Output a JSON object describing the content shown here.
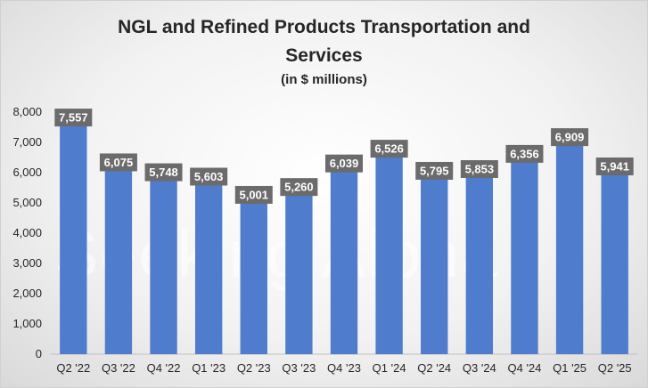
{
  "chart_data": {
    "type": "bar",
    "title_line1": "NGL and Refined Products Transportation and",
    "title_line2": "Services",
    "subtitle": "(in $ millions)",
    "categories": [
      "Q2 '22",
      "Q3 '22",
      "Q4 '22",
      "Q1 '23",
      "Q2 '23",
      "Q3 '23",
      "Q4 '23",
      "Q1 '24",
      "Q2 '24",
      "Q3 '24",
      "Q4 '24",
      "Q1 '25",
      "Q2 '25"
    ],
    "values": [
      7557,
      6075,
      5748,
      5603,
      5001,
      5260,
      6039,
      6526,
      5795,
      5853,
      6356,
      6909,
      5941
    ],
    "data_labels": [
      "7,557",
      "6,075",
      "5,748",
      "5,603",
      "5,001",
      "5,260",
      "6,039",
      "6,526",
      "5,795",
      "5,853",
      "6,356",
      "6,909",
      "5,941"
    ],
    "y_ticks": [
      0,
      1000,
      2000,
      3000,
      4000,
      5000,
      6000,
      7000,
      8000
    ],
    "y_tick_labels": [
      "0",
      "1,000",
      "2,000",
      "3,000",
      "4,000",
      "5,000",
      "6,000",
      "7,000",
      "8,000"
    ],
    "ylim": [
      0,
      8000
    ],
    "xlabel": "",
    "ylabel": "",
    "grid": false,
    "legend": "none",
    "bar_color": "#4f7ccc",
    "label_box_color": "#6b6b6b",
    "label_text_color": "#ffffff",
    "watermark": "Seeking Alpha"
  }
}
